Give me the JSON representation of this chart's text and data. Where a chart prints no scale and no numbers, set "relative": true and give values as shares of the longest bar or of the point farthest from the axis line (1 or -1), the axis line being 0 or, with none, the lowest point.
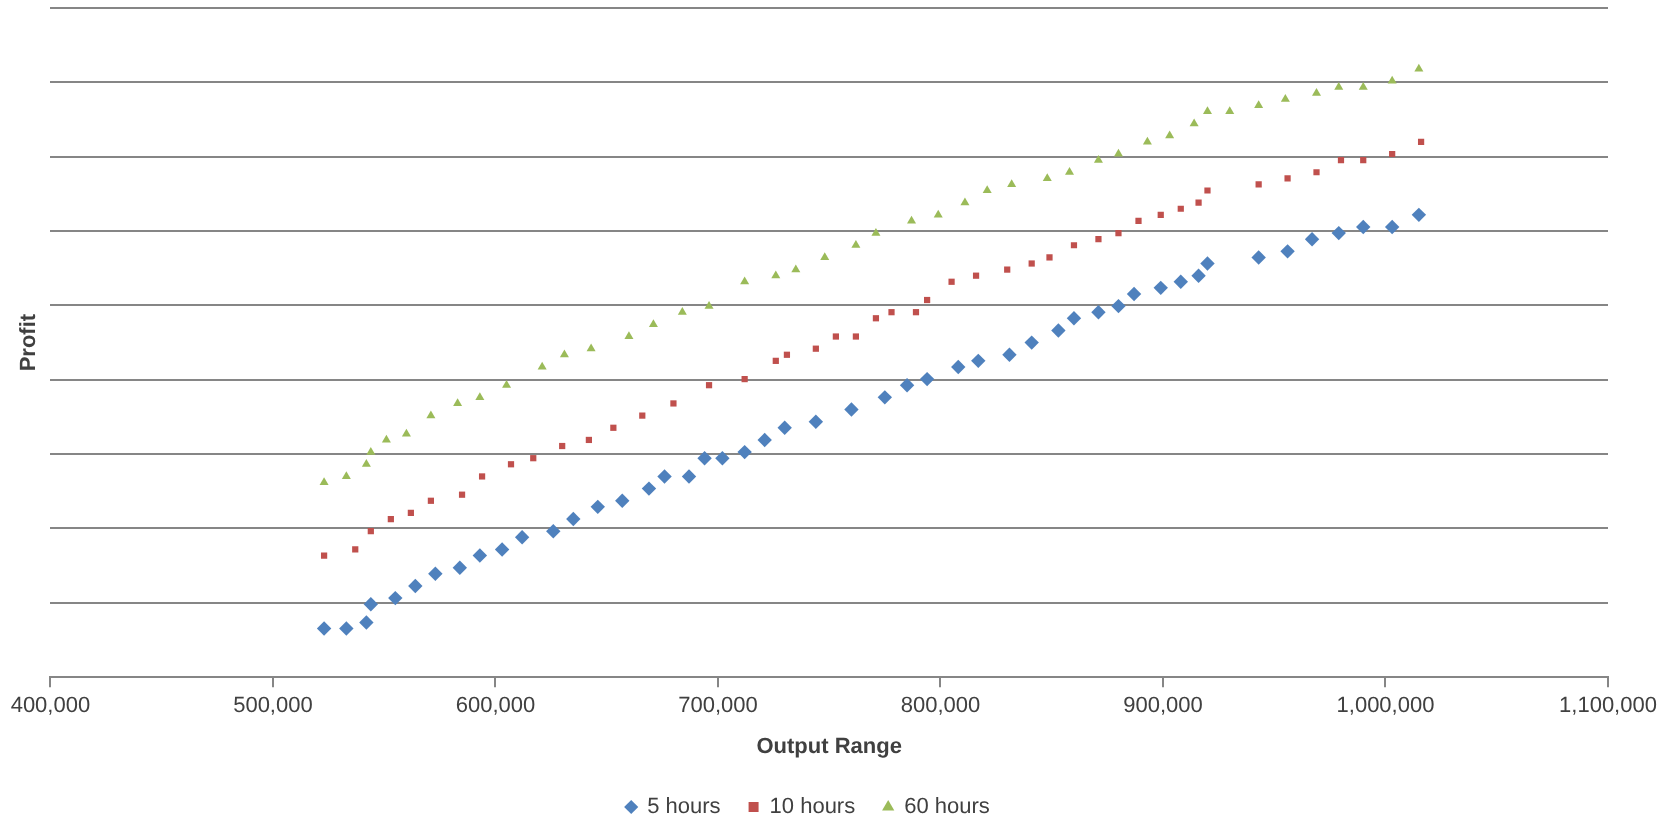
{
  "chart_data": {
    "type": "scatter",
    "relative": true,
    "xlabel": "Output Range",
    "ylabel": "Profit",
    "grid": "y",
    "legend": "bottom",
    "xlim": [
      400000,
      1100000
    ],
    "xticks": [
      {
        "value": 400000,
        "label": "400,000"
      },
      {
        "value": 500000,
        "label": "500,000"
      },
      {
        "value": 600000,
        "label": "600,000"
      },
      {
        "value": 700000,
        "label": "700,000"
      },
      {
        "value": 800000,
        "label": "800,000"
      },
      {
        "value": 900000,
        "label": "900,000"
      },
      {
        "value": 1000000,
        "label": "1,000,000"
      },
      {
        "value": 1100000,
        "label": "1,100,000"
      }
    ],
    "series": [
      {
        "name": "5 hours",
        "color": "#4f81bd",
        "marker": "diamond",
        "x": [
          523000,
          533000,
          542000,
          544000,
          555000,
          564000,
          573000,
          584000,
          593000,
          603000,
          612000,
          626000,
          635000,
          646000,
          657000,
          669000,
          676000,
          687000,
          694000,
          702000,
          712000,
          721000,
          730000,
          744000,
          760000,
          775000,
          785000,
          794000,
          808000,
          817000,
          831000,
          841000,
          853000,
          860000,
          871000,
          880000,
          887000,
          899000,
          908000,
          916000,
          920000,
          943000,
          956000,
          967000,
          979000,
          990000,
          1003000,
          1015000
        ],
        "values": [
          0.08,
          0.08,
          0.09,
          0.12,
          0.13,
          0.15,
          0.17,
          0.18,
          0.2,
          0.21,
          0.23,
          0.24,
          0.26,
          0.28,
          0.29,
          0.31,
          0.33,
          0.33,
          0.36,
          0.36,
          0.37,
          0.39,
          0.41,
          0.42,
          0.44,
          0.46,
          0.48,
          0.49,
          0.51,
          0.52,
          0.53,
          0.55,
          0.57,
          0.59,
          0.6,
          0.61,
          0.63,
          0.64,
          0.65,
          0.66,
          0.68,
          0.69,
          0.7,
          0.72,
          0.73,
          0.74,
          0.74,
          0.76
        ]
      },
      {
        "name": "10 hours",
        "color": "#c0504d",
        "marker": "square",
        "x": [
          523000,
          537000,
          544000,
          553000,
          562000,
          571000,
          585000,
          594000,
          607000,
          617000,
          630000,
          642000,
          653000,
          666000,
          680000,
          696000,
          712000,
          726000,
          731000,
          744000,
          753000,
          762000,
          771000,
          778000,
          789000,
          794000,
          805000,
          816000,
          830000,
          841000,
          849000,
          860000,
          871000,
          880000,
          889000,
          899000,
          908000,
          916000,
          920000,
          943000,
          956000,
          969000,
          980000,
          990000,
          1003000,
          1016000
        ],
        "values": [
          0.2,
          0.21,
          0.24,
          0.26,
          0.27,
          0.29,
          0.3,
          0.33,
          0.35,
          0.36,
          0.38,
          0.39,
          0.41,
          0.43,
          0.45,
          0.48,
          0.49,
          0.52,
          0.53,
          0.54,
          0.56,
          0.56,
          0.59,
          0.6,
          0.6,
          0.62,
          0.65,
          0.66,
          0.67,
          0.68,
          0.69,
          0.71,
          0.72,
          0.73,
          0.75,
          0.76,
          0.77,
          0.78,
          0.8,
          0.81,
          0.82,
          0.83,
          0.85,
          0.85,
          0.86,
          0.88
        ]
      },
      {
        "name": "60 hours",
        "color": "#9bbb59",
        "marker": "triangle",
        "x": [
          523000,
          533000,
          542000,
          544000,
          551000,
          560000,
          571000,
          583000,
          593000,
          605000,
          621000,
          631000,
          643000,
          660000,
          671000,
          684000,
          696000,
          712000,
          726000,
          735000,
          748000,
          762000,
          771000,
          787000,
          799000,
          811000,
          821000,
          832000,
          848000,
          858000,
          871000,
          880000,
          893000,
          903000,
          914000,
          920000,
          930000,
          943000,
          955000,
          969000,
          979000,
          990000,
          1003000,
          1015000
        ],
        "values": [
          0.32,
          0.33,
          0.35,
          0.37,
          0.39,
          0.4,
          0.43,
          0.45,
          0.46,
          0.48,
          0.51,
          0.53,
          0.54,
          0.56,
          0.58,
          0.6,
          0.61,
          0.65,
          0.66,
          0.67,
          0.69,
          0.71,
          0.73,
          0.75,
          0.76,
          0.78,
          0.8,
          0.81,
          0.82,
          0.83,
          0.85,
          0.86,
          0.88,
          0.89,
          0.91,
          0.93,
          0.93,
          0.94,
          0.95,
          0.96,
          0.97,
          0.97,
          0.98,
          1
        ]
      }
    ]
  }
}
